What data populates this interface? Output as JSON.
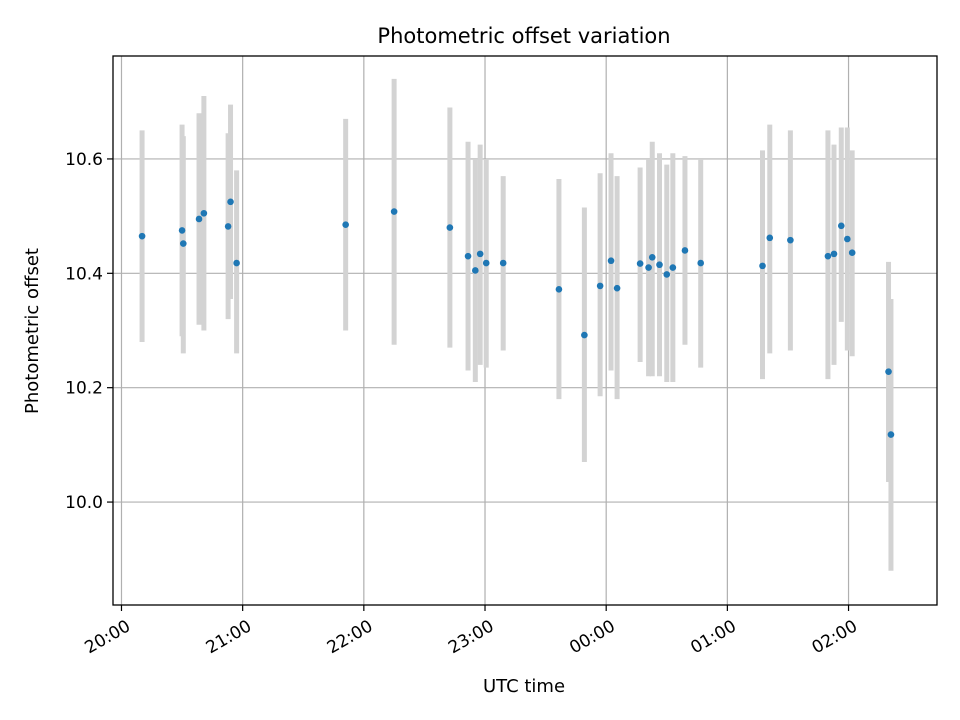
{
  "chart_data": {
    "type": "scatter",
    "title": "Photometric offset variation",
    "xlabel": "UTC time",
    "ylabel": "Photometric offset",
    "xlim": [
      -0.07,
      6.73
    ],
    "ylim": [
      9.82,
      10.78
    ],
    "grid": true,
    "x_unit": "hours since 20:00 UTC",
    "x_ticks": [
      {
        "value": 0,
        "label": "20:00"
      },
      {
        "value": 1,
        "label": "21:00"
      },
      {
        "value": 2,
        "label": "22:00"
      },
      {
        "value": 3,
        "label": "23:00"
      },
      {
        "value": 4,
        "label": "00:00"
      },
      {
        "value": 5,
        "label": "01:00"
      },
      {
        "value": 6,
        "label": "02:00"
      }
    ],
    "y_ticks": [
      {
        "value": 10.0,
        "label": "10.0"
      },
      {
        "value": 10.2,
        "label": "10.2"
      },
      {
        "value": 10.4,
        "label": "10.4"
      },
      {
        "value": 10.6,
        "label": "10.6"
      }
    ],
    "colors": {
      "point": "#1f77b4",
      "errorbar": "#d3d3d3",
      "grid": "#b0b0b0"
    },
    "series": [
      {
        "name": "offset",
        "points": [
          {
            "x": 0.17,
            "y": 10.465,
            "ylo": 10.28,
            "yhi": 10.65
          },
          {
            "x": 0.5,
            "y": 10.475,
            "ylo": 10.29,
            "yhi": 10.66
          },
          {
            "x": 0.51,
            "y": 10.452,
            "ylo": 10.26,
            "yhi": 10.64
          },
          {
            "x": 0.64,
            "y": 10.495,
            "ylo": 10.31,
            "yhi": 10.68
          },
          {
            "x": 0.68,
            "y": 10.505,
            "ylo": 10.3,
            "yhi": 10.71
          },
          {
            "x": 0.88,
            "y": 10.482,
            "ylo": 10.32,
            "yhi": 10.645
          },
          {
            "x": 0.9,
            "y": 10.525,
            "ylo": 10.355,
            "yhi": 10.695
          },
          {
            "x": 0.95,
            "y": 10.418,
            "ylo": 10.26,
            "yhi": 10.58
          },
          {
            "x": 1.85,
            "y": 10.485,
            "ylo": 10.3,
            "yhi": 10.67
          },
          {
            "x": 2.25,
            "y": 10.508,
            "ylo": 10.275,
            "yhi": 10.74
          },
          {
            "x": 2.71,
            "y": 10.48,
            "ylo": 10.27,
            "yhi": 10.69
          },
          {
            "x": 2.86,
            "y": 10.43,
            "ylo": 10.23,
            "yhi": 10.63
          },
          {
            "x": 2.92,
            "y": 10.405,
            "ylo": 10.21,
            "yhi": 10.6
          },
          {
            "x": 2.96,
            "y": 10.434,
            "ylo": 10.24,
            "yhi": 10.625
          },
          {
            "x": 3.01,
            "y": 10.418,
            "ylo": 10.235,
            "yhi": 10.6
          },
          {
            "x": 3.15,
            "y": 10.418,
            "ylo": 10.265,
            "yhi": 10.57
          },
          {
            "x": 3.61,
            "y": 10.372,
            "ylo": 10.18,
            "yhi": 10.565
          },
          {
            "x": 3.82,
            "y": 10.292,
            "ylo": 10.07,
            "yhi": 10.515
          },
          {
            "x": 3.95,
            "y": 10.378,
            "ylo": 10.185,
            "yhi": 10.575
          },
          {
            "x": 4.04,
            "y": 10.422,
            "ylo": 10.23,
            "yhi": 10.61
          },
          {
            "x": 4.09,
            "y": 10.374,
            "ylo": 10.18,
            "yhi": 10.57
          },
          {
            "x": 4.28,
            "y": 10.417,
            "ylo": 10.245,
            "yhi": 10.585
          },
          {
            "x": 4.35,
            "y": 10.41,
            "ylo": 10.22,
            "yhi": 10.6
          },
          {
            "x": 4.38,
            "y": 10.428,
            "ylo": 10.22,
            "yhi": 10.63
          },
          {
            "x": 4.44,
            "y": 10.415,
            "ylo": 10.22,
            "yhi": 10.61
          },
          {
            "x": 4.5,
            "y": 10.398,
            "ylo": 10.21,
            "yhi": 10.59
          },
          {
            "x": 4.55,
            "y": 10.41,
            "ylo": 10.21,
            "yhi": 10.61
          },
          {
            "x": 4.65,
            "y": 10.44,
            "ylo": 10.275,
            "yhi": 10.605
          },
          {
            "x": 4.78,
            "y": 10.418,
            "ylo": 10.235,
            "yhi": 10.6
          },
          {
            "x": 5.29,
            "y": 10.413,
            "ylo": 10.215,
            "yhi": 10.615
          },
          {
            "x": 5.35,
            "y": 10.462,
            "ylo": 10.26,
            "yhi": 10.66
          },
          {
            "x": 5.52,
            "y": 10.458,
            "ylo": 10.265,
            "yhi": 10.65
          },
          {
            "x": 5.83,
            "y": 10.43,
            "ylo": 10.215,
            "yhi": 10.65
          },
          {
            "x": 5.88,
            "y": 10.434,
            "ylo": 10.24,
            "yhi": 10.625
          },
          {
            "x": 5.94,
            "y": 10.483,
            "ylo": 10.315,
            "yhi": 10.655
          },
          {
            "x": 5.99,
            "y": 10.46,
            "ylo": 10.265,
            "yhi": 10.655
          },
          {
            "x": 6.03,
            "y": 10.436,
            "ylo": 10.255,
            "yhi": 10.615
          },
          {
            "x": 6.33,
            "y": 10.228,
            "ylo": 10.035,
            "yhi": 10.42
          },
          {
            "x": 6.35,
            "y": 10.118,
            "ylo": 9.88,
            "yhi": 10.355
          }
        ]
      }
    ]
  }
}
